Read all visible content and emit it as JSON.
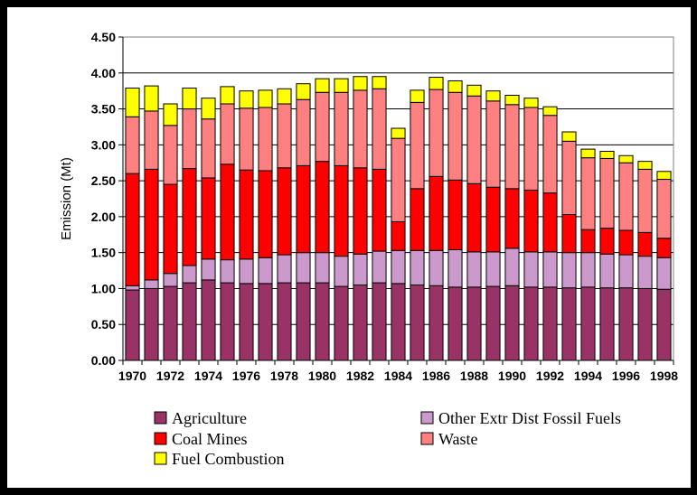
{
  "chart_data": {
    "type": "bar",
    "stacked": true,
    "title": "",
    "xlabel": "",
    "ylabel": "Emission (Mt)",
    "ylim": [
      0,
      4.5
    ],
    "ytick_step": 0.5,
    "yticks": [
      "0.00",
      "0.50",
      "1.00",
      "1.50",
      "2.00",
      "2.50",
      "3.00",
      "3.50",
      "4.00",
      "4.50"
    ],
    "grid": true,
    "legend_position": "bottom",
    "categories": [
      "1970",
      "1971",
      "1972",
      "1973",
      "1974",
      "1975",
      "1976",
      "1977",
      "1978",
      "1979",
      "1980",
      "1981",
      "1982",
      "1983",
      "1984",
      "1985",
      "1986",
      "1987",
      "1988",
      "1989",
      "1990",
      "1991",
      "1992",
      "1993",
      "1994",
      "1995",
      "1996",
      "1997",
      "1998"
    ],
    "xtick_labels": [
      "1970",
      "1972",
      "1974",
      "1976",
      "1978",
      "1980",
      "1982",
      "1984",
      "1986",
      "1988",
      "1990",
      "1992",
      "1994",
      "1996",
      "1998"
    ],
    "series": [
      {
        "name": "Agriculture",
        "color": "#993366",
        "values": [
          0.98,
          1.0,
          1.03,
          1.08,
          1.12,
          1.08,
          1.07,
          1.07,
          1.08,
          1.08,
          1.08,
          1.03,
          1.05,
          1.08,
          1.07,
          1.05,
          1.04,
          1.02,
          1.02,
          1.03,
          1.04,
          1.02,
          1.02,
          1.01,
          1.02,
          1.01,
          1.01,
          1.0,
          0.99
        ]
      },
      {
        "name": "Other Extr Dist Fossil Fuels",
        "color": "#CC99CC",
        "values": [
          0.06,
          0.12,
          0.18,
          0.24,
          0.29,
          0.32,
          0.34,
          0.36,
          0.39,
          0.42,
          0.42,
          0.42,
          0.43,
          0.44,
          0.46,
          0.48,
          0.49,
          0.52,
          0.49,
          0.48,
          0.52,
          0.49,
          0.49,
          0.49,
          0.48,
          0.47,
          0.46,
          0.45,
          0.44
        ]
      },
      {
        "name": "Coal Mines",
        "color": "#FF0000",
        "values": [
          1.56,
          1.54,
          1.24,
          1.35,
          1.13,
          1.33,
          1.24,
          1.21,
          1.21,
          1.21,
          1.27,
          1.26,
          1.2,
          1.14,
          0.4,
          0.86,
          1.03,
          0.97,
          0.95,
          0.9,
          0.83,
          0.86,
          0.82,
          0.53,
          0.32,
          0.36,
          0.34,
          0.33,
          0.27
        ]
      },
      {
        "name": "Waste",
        "color": "#FF8080",
        "values": [
          0.79,
          0.81,
          0.82,
          0.83,
          0.82,
          0.84,
          0.86,
          0.88,
          0.89,
          0.92,
          0.96,
          1.02,
          1.08,
          1.12,
          1.16,
          1.2,
          1.21,
          1.22,
          1.22,
          1.2,
          1.17,
          1.15,
          1.08,
          1.02,
          1.0,
          0.97,
          0.94,
          0.88,
          0.82
        ]
      },
      {
        "name": "Fuel Combustion",
        "color": "#FFFF00",
        "values": [
          0.4,
          0.35,
          0.3,
          0.29,
          0.29,
          0.24,
          0.24,
          0.24,
          0.21,
          0.22,
          0.19,
          0.19,
          0.19,
          0.17,
          0.14,
          0.17,
          0.17,
          0.16,
          0.15,
          0.14,
          0.13,
          0.13,
          0.12,
          0.13,
          0.12,
          0.1,
          0.1,
          0.11,
          0.11
        ]
      }
    ],
    "legend": [
      {
        "label": "Agriculture",
        "color": "#993366"
      },
      {
        "label": "Other Extr Dist Fossil Fuels",
        "color": "#CC99CC"
      },
      {
        "label": "Coal Mines",
        "color": "#FF0000"
      },
      {
        "label": "Waste",
        "color": "#FF8080"
      },
      {
        "label": "Fuel Combustion",
        "color": "#FFFF00"
      }
    ]
  }
}
